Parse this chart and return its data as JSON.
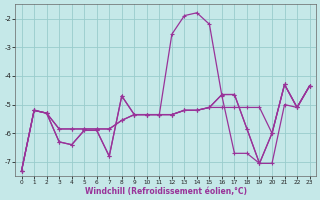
{
  "xlabel": "Windchill (Refroidissement éolien,°C)",
  "bg_color": "#c5e8e8",
  "grid_color": "#99cccc",
  "line_color": "#993399",
  "x_data": [
    0,
    1,
    2,
    3,
    4,
    5,
    6,
    7,
    8,
    9,
    10,
    11,
    12,
    13,
    14,
    15,
    16,
    17,
    18,
    19,
    20,
    21,
    22,
    23
  ],
  "y_A": [
    -7.3,
    -5.2,
    -5.3,
    -6.3,
    -6.4,
    -5.9,
    -5.9,
    -6.8,
    -4.7,
    -5.35,
    -5.35,
    -5.35,
    -2.55,
    -1.9,
    -1.8,
    -2.2,
    -4.7,
    -6.7,
    -6.7,
    -7.05,
    -6.0,
    -4.3,
    -5.1,
    -4.35
  ],
  "y_B": [
    -7.3,
    -5.2,
    -5.3,
    -5.85,
    -5.85,
    -5.85,
    -5.85,
    -5.85,
    -5.55,
    -5.35,
    -5.35,
    -5.35,
    -5.35,
    -5.2,
    -5.2,
    -5.1,
    -5.1,
    -5.1,
    -5.1,
    -5.1,
    -6.0,
    -4.3,
    -5.1,
    -4.35
  ],
  "y_C": [
    -7.3,
    -5.2,
    -5.3,
    -5.85,
    -5.85,
    -5.85,
    -5.85,
    -5.85,
    -5.55,
    -5.35,
    -5.35,
    -5.35,
    -5.35,
    -5.2,
    -5.2,
    -5.1,
    -4.65,
    -4.65,
    -5.85,
    -7.05,
    -7.05,
    -5.0,
    -5.1,
    -4.35
  ],
  "y_D": [
    -7.3,
    -5.2,
    -5.3,
    -6.3,
    -6.4,
    -5.9,
    -5.9,
    -6.8,
    -4.7,
    -5.35,
    -5.35,
    -5.35,
    -5.35,
    -5.2,
    -5.2,
    -5.1,
    -4.65,
    -4.65,
    -5.85,
    -7.05,
    -6.0,
    -4.3,
    -5.1,
    -4.35
  ],
  "ylim": [
    -7.5,
    -1.5
  ],
  "xlim": [
    -0.5,
    23.5
  ],
  "yticks": [
    -7,
    -6,
    -5,
    -4,
    -3,
    -2
  ],
  "xticks": [
    0,
    1,
    2,
    3,
    4,
    5,
    6,
    7,
    8,
    9,
    10,
    11,
    12,
    13,
    14,
    15,
    16,
    17,
    18,
    19,
    20,
    21,
    22,
    23
  ]
}
